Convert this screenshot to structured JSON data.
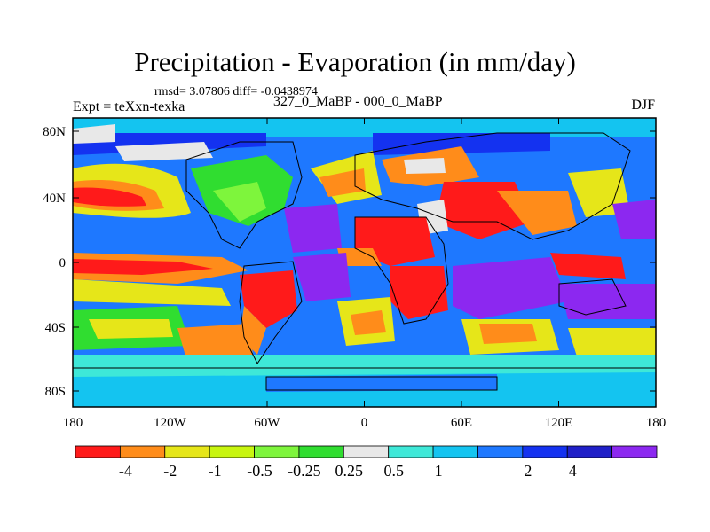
{
  "header": {
    "title": "Precipitation - Evaporation (in mm/day)",
    "stats": "rmsd= 3.07806 diff= -0.0438974",
    "left_label": "Expt = teXxn-texka",
    "center_label": "327_0_MaBP - 000_0_MaBP",
    "right_label": "DJF"
  },
  "map": {
    "x_ticks": [
      "180",
      "120W",
      "60W",
      "0",
      "60E",
      "120E",
      "180"
    ],
    "y_ticks": [
      "80N",
      "40N",
      "0",
      "40S",
      "80S"
    ]
  },
  "colorbar": {
    "colors": [
      "#ff1a1a",
      "#ff8c1a",
      "#e6e619",
      "#c8f50f",
      "#7ef53c",
      "#30dd30",
      "#e8e8e8",
      "#3ee8d8",
      "#14c4f0",
      "#1e78ff",
      "#1432f0",
      "#2020c8",
      "#8c28f0"
    ],
    "labels": [
      "-4",
      "-2",
      "-1",
      "-0.5",
      "-0.25",
      "0.25",
      "0.5",
      "1",
      "2",
      "4"
    ]
  }
}
